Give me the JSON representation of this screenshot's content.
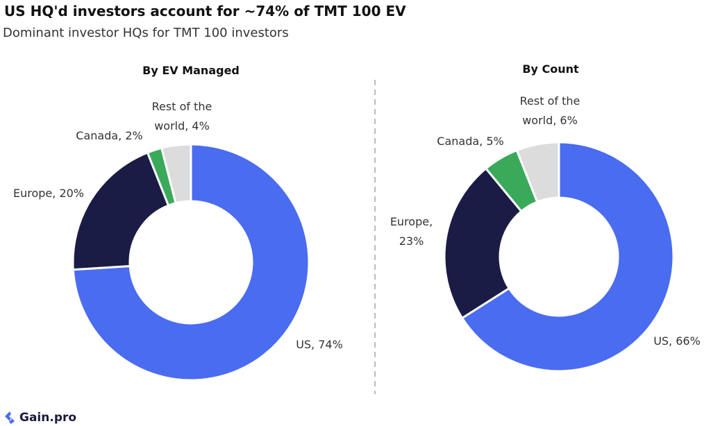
{
  "title": "US HQ'd investors account for ~74% of TMT 100 EV",
  "subtitle": "Dominant investor HQs for TMT 100 investors",
  "footer": "Gain.pro",
  "chart_data": [
    {
      "type": "donut",
      "title": "By EV Managed",
      "values": [
        74,
        20,
        2,
        4
      ],
      "value_labels": [
        "US, 74%",
        "Europe, 20%",
        "Canada, 2%",
        "Rest of the world, 4%"
      ],
      "colors": [
        "#4a6cf0",
        "#1b1c45",
        "#3aaa5a",
        "#dcdcdc"
      ]
    },
    {
      "type": "donut",
      "title": "By Count",
      "values": [
        66,
        23,
        5,
        6
      ],
      "value_labels": [
        "US, 66%",
        "Europe, 23%",
        "Canada, 5%",
        "Rest of the world, 6%"
      ],
      "colors": [
        "#4a6cf0",
        "#1b1c45",
        "#3aaa5a",
        "#dcdcdc"
      ]
    }
  ]
}
